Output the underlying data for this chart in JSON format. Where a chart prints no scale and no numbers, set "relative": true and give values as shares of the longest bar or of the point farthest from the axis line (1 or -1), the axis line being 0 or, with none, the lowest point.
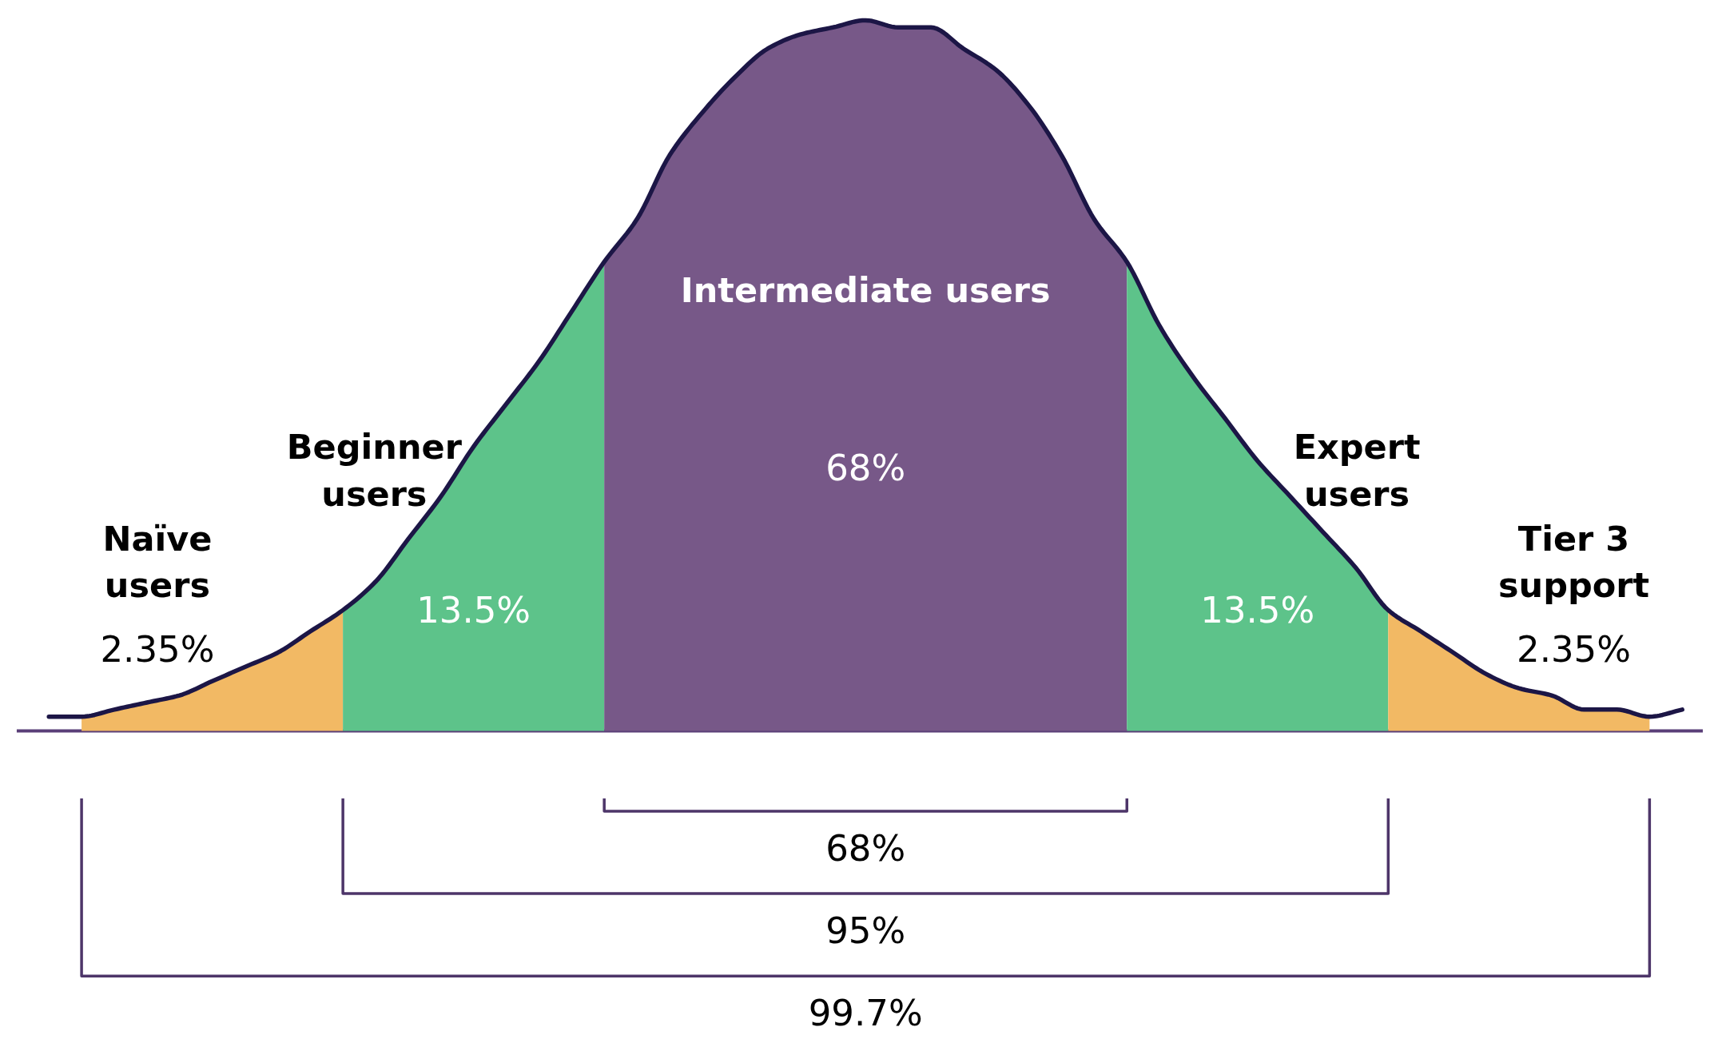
{
  "chart_data": {
    "type": "area",
    "relative": true,
    "categories": [
      null,
      null,
      null,
      null,
      null,
      null,
      null,
      null,
      null,
      null,
      null,
      null,
      null,
      null,
      null,
      null,
      null,
      null,
      null,
      null,
      null,
      null,
      null,
      null,
      null,
      null,
      null,
      null,
      null,
      null,
      null,
      null,
      null,
      null,
      null,
      null,
      null,
      null,
      null,
      null,
      null,
      null,
      null,
      null,
      null,
      null,
      null,
      null,
      null,
      null,
      null
    ],
    "series": [
      {
        "name": "Naïve users",
        "color": "#f2b964",
        "values": [
          null,
          0.02,
          0.03,
          0.04,
          0.05,
          0.07,
          0.09,
          0.11,
          0.14,
          0.17,
          null,
          null,
          null,
          null,
          null,
          null,
          null,
          null,
          null,
          null,
          null,
          null,
          null,
          null,
          null,
          null,
          null,
          null,
          null,
          null,
          null,
          null,
          null,
          null,
          null,
          null,
          null,
          null,
          null,
          null,
          null,
          null,
          null,
          null,
          null,
          null,
          null,
          null,
          null,
          null,
          null
        ]
      },
      {
        "name": "Beginner users",
        "color": "#5dc38a",
        "values": [
          null,
          null,
          null,
          null,
          null,
          null,
          null,
          null,
          null,
          0.17,
          0.21,
          0.27,
          0.33,
          0.4,
          0.46,
          0.52,
          0.59,
          0.66,
          null,
          null,
          null,
          null,
          null,
          null,
          null,
          null,
          null,
          null,
          null,
          null,
          null,
          null,
          null,
          null,
          null,
          null,
          null,
          null,
          null,
          null,
          null,
          null,
          null,
          null,
          null,
          null,
          null,
          null,
          null,
          null,
          null
        ]
      },
      {
        "name": "Intermediate users",
        "color": "#775888",
        "values": [
          null,
          null,
          null,
          null,
          null,
          null,
          null,
          null,
          null,
          null,
          null,
          null,
          null,
          null,
          null,
          null,
          null,
          0.66,
          0.72,
          0.81,
          0.87,
          0.92,
          0.96,
          0.98,
          0.99,
          1.0,
          0.99,
          0.99,
          0.96,
          0.93,
          0.88,
          0.81,
          0.72,
          0.66,
          null,
          null,
          null,
          null,
          null,
          null,
          null,
          null,
          null,
          null,
          null,
          null,
          null,
          null,
          null,
          null,
          null
        ]
      },
      {
        "name": "Expert users",
        "color": "#5dc38a",
        "values": [
          null,
          null,
          null,
          null,
          null,
          null,
          null,
          null,
          null,
          null,
          null,
          null,
          null,
          null,
          null,
          null,
          null,
          null,
          null,
          null,
          null,
          null,
          null,
          null,
          null,
          null,
          null,
          null,
          null,
          null,
          null,
          null,
          null,
          0.66,
          0.57,
          0.5,
          0.44,
          0.38,
          0.33,
          0.28,
          0.23,
          0.17,
          null,
          null,
          null,
          null,
          null,
          null,
          null,
          null,
          null
        ]
      },
      {
        "name": "Tier 3 support",
        "color": "#f2b964",
        "values": [
          null,
          null,
          null,
          null,
          null,
          null,
          null,
          null,
          null,
          null,
          null,
          null,
          null,
          null,
          null,
          null,
          null,
          null,
          null,
          null,
          null,
          null,
          null,
          null,
          null,
          null,
          null,
          null,
          null,
          null,
          null,
          null,
          null,
          null,
          null,
          null,
          null,
          null,
          null,
          null,
          null,
          0.17,
          0.14,
          0.11,
          0.08,
          0.06,
          0.05,
          0.03,
          0.03,
          0.02,
          null
        ]
      },
      {
        "type": "line",
        "color": "#1c1646",
        "values": [
          0.02,
          0.02,
          0.03,
          0.04,
          0.05,
          0.07,
          0.09,
          0.11,
          0.14,
          0.17,
          0.21,
          0.27,
          0.33,
          0.4,
          0.46,
          0.52,
          0.59,
          0.66,
          0.72,
          0.81,
          0.87,
          0.92,
          0.96,
          0.98,
          0.99,
          1.0,
          0.99,
          0.99,
          0.96,
          0.93,
          0.88,
          0.81,
          0.72,
          0.66,
          0.57,
          0.5,
          0.44,
          0.38,
          0.33,
          0.28,
          0.23,
          0.17,
          0.14,
          0.11,
          0.08,
          0.06,
          0.05,
          0.03,
          0.03,
          0.02,
          0.03
        ]
      }
    ],
    "annotations": [
      "2.35%",
      "13.5%",
      "68%",
      "13.5%",
      "2.35%",
      "68%",
      "95%",
      "99.7%"
    ]
  }
}
